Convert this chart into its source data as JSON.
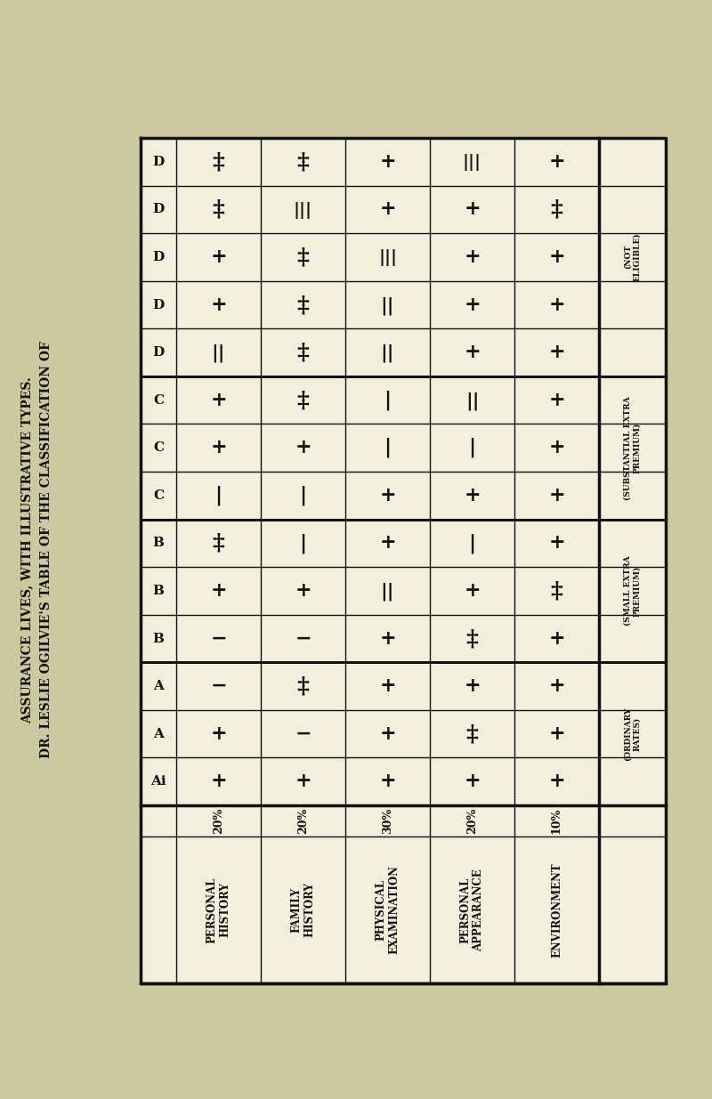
{
  "title_line1": "DR. LESLIE OGILVIE'S TABLE OF THE CLASSIFICATION OF",
  "title_line2": "ASSURANCE LIVES, WITH ILLUSTRATIVE TYPES.",
  "bg_color": "#ccc9a0",
  "cell_bg": "#f2f0dc",
  "border_color": "#111111",
  "row_labels_top_to_bottom": [
    "D",
    "D",
    "D",
    "D",
    "D",
    "C",
    "C",
    "C",
    "B",
    "B",
    "B",
    "A",
    "A",
    "Ai"
  ],
  "col_labels": [
    "PERSONAL\nHISTORY",
    "FAMILY\nHISTORY",
    "PHYSICAL\nEXAMINATION",
    "PERSONAL\nAPPEARANCE",
    "ENVIRONMENT"
  ],
  "col_weights": [
    "20%",
    "20%",
    "30%",
    "20%",
    "10%"
  ],
  "group_labels": [
    "(NOT\nELIGIBLE)",
    "(SUBSTANTIAL EXTRA\nPREMIUM)",
    "(SMALL EXTRA\nPREMIUM)",
    "(ORDINARY\nRATES)"
  ],
  "group_row_ranges": [
    [
      0,
      4
    ],
    [
      5,
      7
    ],
    [
      8,
      10
    ],
    [
      11,
      13
    ]
  ],
  "table_data_top_to_bottom": [
    [
      "++",
      "++",
      "+",
      "|||",
      "+"
    ],
    [
      "++",
      "|||",
      "+",
      "+",
      "++"
    ],
    [
      "+",
      "++",
      "|||",
      "+",
      "+"
    ],
    [
      "+",
      "++",
      "||",
      "+",
      "+"
    ],
    [
      "||",
      "++",
      "||",
      "+",
      "+"
    ],
    [
      "+",
      "++",
      "|",
      "||",
      "+"
    ],
    [
      "+",
      "+",
      "|",
      "|",
      "+"
    ],
    [
      "|",
      "|",
      "+",
      "+",
      "+"
    ],
    [
      "++",
      "|",
      "+",
      "|",
      "+"
    ],
    [
      "+",
      "+",
      "||",
      "+",
      "++"
    ],
    [
      "-",
      "-",
      "+",
      "++",
      "+"
    ],
    [
      "-",
      "++",
      "+",
      "+",
      "+"
    ],
    [
      "+",
      "-",
      "+",
      "++",
      "+"
    ],
    [
      "+",
      "+",
      "+",
      "+",
      "+"
    ]
  ],
  "font_color": "#111111"
}
